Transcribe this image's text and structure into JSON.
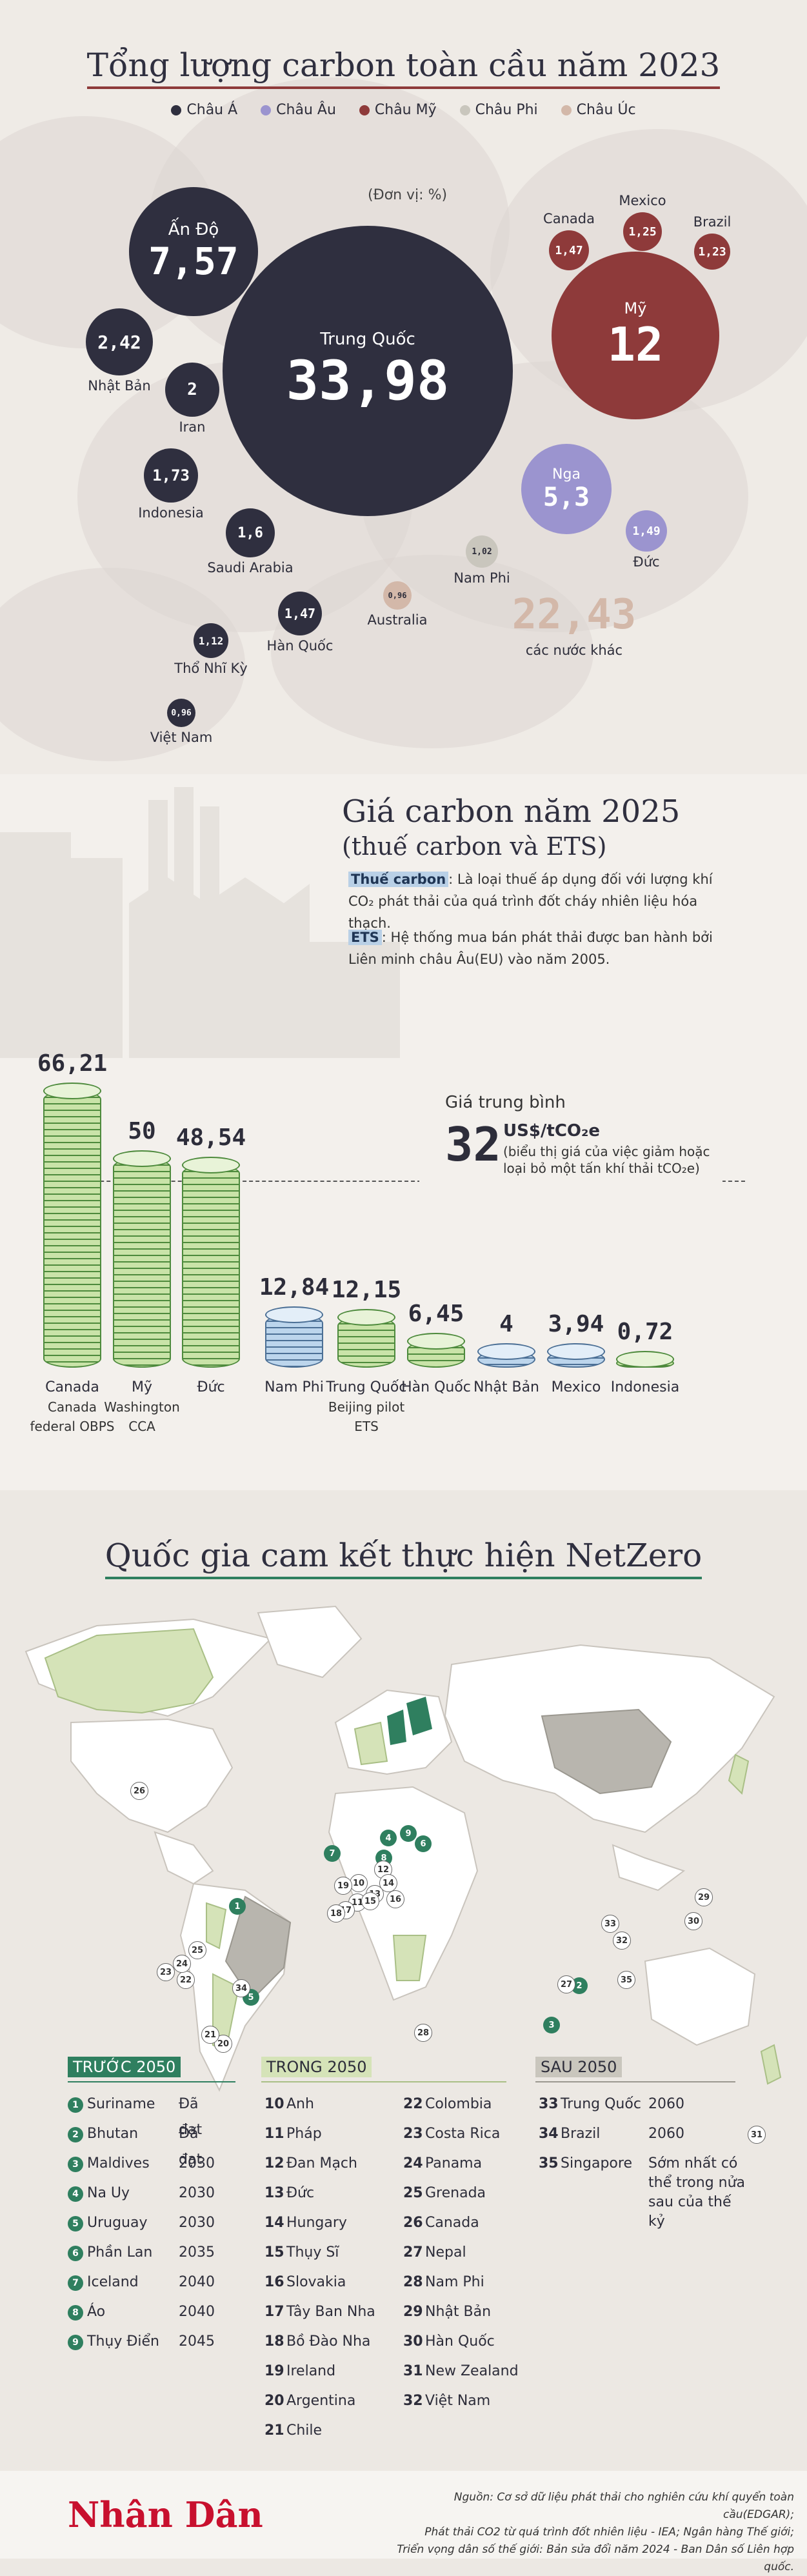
{
  "section1": {
    "title": "Tổng lượng carbon toàn cầu năm 2023",
    "unit": "(Đơn vị: %)",
    "legend": [
      {
        "label": "Châu Á",
        "color": "#2f2f3f"
      },
      {
        "label": "Châu Âu",
        "color": "#9b94cf"
      },
      {
        "label": "Châu Mỹ",
        "color": "#8e3a3a"
      },
      {
        "label": "Châu Phi",
        "color": "#c9c6bd"
      },
      {
        "label": "Châu Úc",
        "color": "#d3b8a9"
      }
    ]
  },
  "chart_data": [
    {
      "type": "bubble",
      "title": "Tổng lượng carbon toàn cầu năm 2023",
      "unit": "%",
      "points": [
        {
          "name": "Trung Quốc",
          "value": "33,98",
          "region": "Châu Á"
        },
        {
          "name": "Mỹ",
          "value": "12",
          "region": "Châu Mỹ"
        },
        {
          "name": "Ấn Độ",
          "value": "7,57",
          "region": "Châu Á"
        },
        {
          "name": "Nga",
          "value": "5,3",
          "region": "Châu Âu"
        },
        {
          "name": "Nhật Bản",
          "value": "2,42",
          "region": "Châu Á"
        },
        {
          "name": "Iran",
          "value": "2",
          "region": "Châu Á"
        },
        {
          "name": "Indonesia",
          "value": "1,73",
          "region": "Châu Á"
        },
        {
          "name": "Saudi Arabia",
          "value": "1,6",
          "region": "Châu Á"
        },
        {
          "name": "Hàn Quốc",
          "value": "1,47",
          "region": "Châu Á"
        },
        {
          "name": "Canada",
          "value": "1,47",
          "region": "Châu Mỹ"
        },
        {
          "name": "Mexico",
          "value": "1,25",
          "region": "Châu Mỹ"
        },
        {
          "name": "Brazil",
          "value": "1,23",
          "region": "Châu Mỹ"
        },
        {
          "name": "Đức",
          "value": "1,49",
          "region": "Châu Âu"
        },
        {
          "name": "Thổ Nhĩ Kỳ",
          "value": "1,12",
          "region": "Châu Á"
        },
        {
          "name": "Nam Phi",
          "value": "1,02",
          "region": "Châu Phi"
        },
        {
          "name": "Australia",
          "value": "0,96",
          "region": "Châu Úc"
        },
        {
          "name": "Việt Nam",
          "value": "0,96",
          "region": "Châu Á"
        },
        {
          "name": "các nước khác",
          "value": "22,43",
          "region": ""
        }
      ]
    },
    {
      "type": "bar",
      "title": "Giá carbon năm 2025",
      "subtitle": "(thuế carbon và ETS)",
      "categories": [
        "Canada",
        "Mỹ",
        "Đức",
        "Nam Phi",
        "Trung Quốc",
        "Hàn Quốc",
        "Nhật Bản",
        "Mexico",
        "Indonesia"
      ],
      "category_notes": [
        "Canada federal OBPS",
        "Washington CCA",
        "",
        "",
        "Beijing pilot ETS",
        "",
        "",
        "",
        ""
      ],
      "values": [
        66.21,
        50,
        48.54,
        12.84,
        12.15,
        6.45,
        4,
        3.94,
        0.72
      ],
      "value_labels": [
        "66,21",
        "50",
        "48,54",
        "12,84",
        "12,15",
        "6,45",
        "4",
        "3,94",
        "0,72"
      ],
      "colors": [
        "green",
        "green",
        "green",
        "blue",
        "green",
        "green",
        "blue",
        "blue",
        "green"
      ],
      "average": {
        "value": 32,
        "label": "32"
      }
    }
  ],
  "section2": {
    "title": "Giá carbon năm 2025",
    "subtitle": "(thuế carbon và ETS)",
    "tax_tag": "Thuế carbon",
    "tax_text": ": Là loại thuế áp dụng đối với lượng khí CO₂ phát thải của quá trình đốt cháy nhiên liệu hóa thạch.",
    "ets_tag": "ETS",
    "ets_text": ": Hệ thống mua bán phát thải được ban hành bởi Liên minh châu Âu(EU) vào năm 2005.",
    "avg_title": "Giá trung bình",
    "avg_value": "32",
    "avg_unit": "US$/tCO₂e",
    "avg_note": "(biểu thị giá của việc giảm hoặc loại bỏ một tấn khí thải tCO₂e)"
  },
  "section3": {
    "title": "Quốc gia cam kết thực hiện NetZero",
    "before": {
      "heading": "TRƯỚC 2050",
      "rows": [
        {
          "n": "1",
          "name": "Suriname",
          "year": "Đã đạt"
        },
        {
          "n": "2",
          "name": "Bhutan",
          "year": "Đã đạt"
        },
        {
          "n": "3",
          "name": "Maldives",
          "year": "2030"
        },
        {
          "n": "4",
          "name": "Na Uy",
          "year": "2030"
        },
        {
          "n": "5",
          "name": "Uruguay",
          "year": "2030"
        },
        {
          "n": "6",
          "name": "Phần Lan",
          "year": "2035"
        },
        {
          "n": "7",
          "name": "Iceland",
          "year": "2040"
        },
        {
          "n": "8",
          "name": "Áo",
          "year": "2040"
        },
        {
          "n": "9",
          "name": "Thụy Điển",
          "year": "2045"
        }
      ]
    },
    "during": {
      "heading": "TRONG 2050",
      "col1": [
        {
          "n": "10",
          "name": "Anh"
        },
        {
          "n": "11",
          "name": "Pháp"
        },
        {
          "n": "12",
          "name": "Đan Mạch"
        },
        {
          "n": "13",
          "name": "Đức"
        },
        {
          "n": "14",
          "name": "Hungary"
        },
        {
          "n": "15",
          "name": "Thụy Sĩ"
        },
        {
          "n": "16",
          "name": "Slovakia"
        },
        {
          "n": "17",
          "name": "Tây Ban Nha"
        },
        {
          "n": "18",
          "name": "Bồ Đào Nha"
        },
        {
          "n": "19",
          "name": "Ireland"
        },
        {
          "n": "20",
          "name": "Argentina"
        },
        {
          "n": "21",
          "name": "Chile"
        }
      ],
      "col2": [
        {
          "n": "22",
          "name": "Colombia"
        },
        {
          "n": "23",
          "name": "Costa Rica"
        },
        {
          "n": "24",
          "name": "Panama"
        },
        {
          "n": "25",
          "name": "Grenada"
        },
        {
          "n": "26",
          "name": "Canada"
        },
        {
          "n": "27",
          "name": "Nepal"
        },
        {
          "n": "28",
          "name": "Nam Phi"
        },
        {
          "n": "29",
          "name": "Nhật Bản"
        },
        {
          "n": "30",
          "name": "Hàn Quốc"
        },
        {
          "n": "31",
          "name": "New Zealand"
        },
        {
          "n": "32",
          "name": "Việt Nam"
        }
      ]
    },
    "after": {
      "heading": "SAU 2050",
      "rows": [
        {
          "n": "33",
          "name": "Trung Quốc",
          "year": "2060"
        },
        {
          "n": "34",
          "name": "Brazil",
          "year": "2060"
        },
        {
          "n": "35",
          "name": "Singapore",
          "year": "Sớm nhất có thể trong nửa sau của thế kỷ"
        }
      ]
    }
  },
  "footer": {
    "logo": "Nhân Dân",
    "source1": "Nguồn: Cơ sở dữ liệu phát thải cho nghiên cứu khí quyển toàn cầu(EDGAR);",
    "source2": "Phát thải CO2 từ quá trình đốt nhiên liệu - IEA; Ngân hàng Thế giới;",
    "source3": "Triển vọng dân số thế giới: Bản sửa đổi năm 2024 - Ban Dân số Liên hợp quốc."
  }
}
